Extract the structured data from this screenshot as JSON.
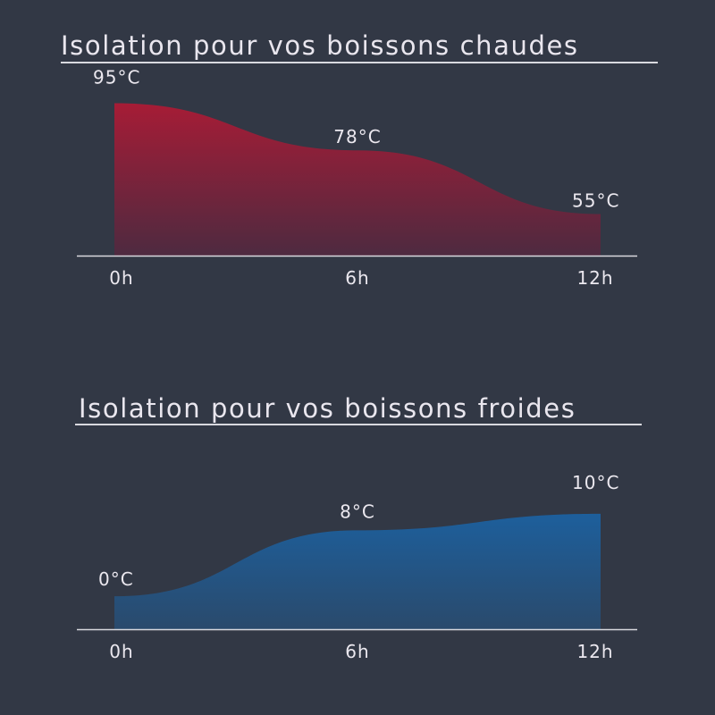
{
  "chart_data": [
    {
      "type": "area",
      "title": "Isolation pour vos boissons chaudes",
      "x": [
        0,
        6,
        12
      ],
      "tick_labels": [
        "0h",
        "6h",
        "12h"
      ],
      "values": [
        95,
        78,
        55
      ],
      "data_labels": [
        "95°C",
        "78°C",
        "55°C"
      ],
      "unit": "°C",
      "ylim": [
        40,
        100
      ],
      "grid": false,
      "legend": "none",
      "colors": {
        "top": "#a61c36",
        "bottom": "#4e2a40"
      }
    },
    {
      "type": "area",
      "title": "Isolation pour vos boissons froides",
      "x": [
        0,
        6,
        12
      ],
      "tick_labels": [
        "0h",
        "6h",
        "12h"
      ],
      "values": [
        0,
        8,
        10
      ],
      "data_labels": [
        "0°C",
        "8°C",
        "10°C"
      ],
      "unit": "°C",
      "ylim": [
        -4,
        14
      ],
      "grid": false,
      "legend": "none",
      "colors": {
        "top": "#1d5f9c",
        "bottom": "#2a4a6c"
      }
    }
  ]
}
